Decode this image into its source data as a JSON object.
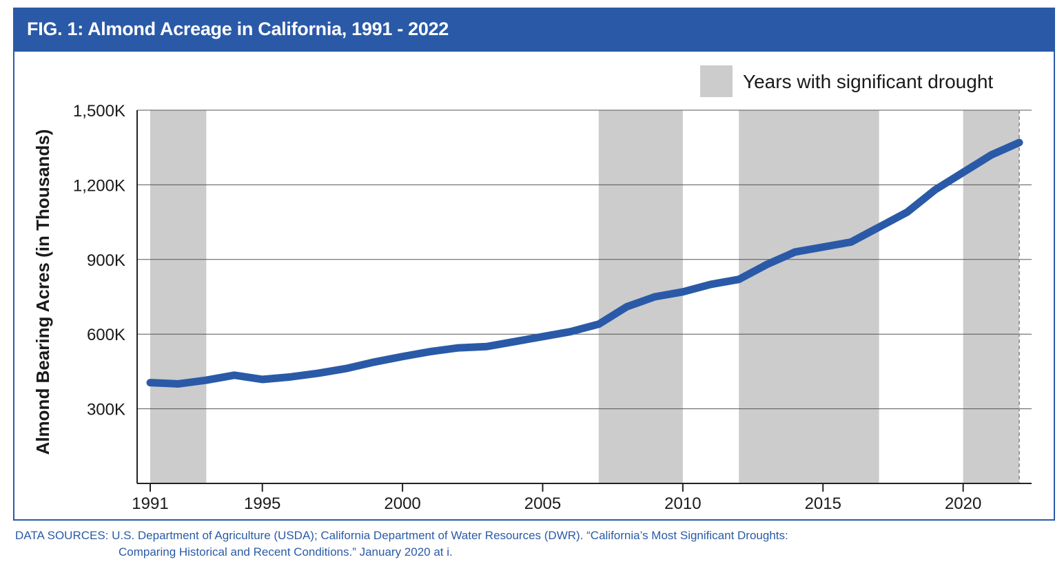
{
  "chart_data": {
    "type": "line",
    "title": "FIG. 1: Almond Acreage in California, 1991 - 2022",
    "ylabel": "Almond Bearing Acres (in Thousands)",
    "xlabel": "",
    "xlim": [
      1991,
      2022
    ],
    "ylim": [
      0,
      1500
    ],
    "x_ticks": [
      1991,
      1995,
      2000,
      2005,
      2010,
      2015,
      2020
    ],
    "x_tick_labels": [
      "1991",
      "1995",
      "2000",
      "2005",
      "2010",
      "2015",
      "2020"
    ],
    "y_ticks": [
      300,
      600,
      900,
      1200,
      1500
    ],
    "y_tick_labels": [
      "300K",
      "600K",
      "900K",
      "1,200K",
      "1,500K"
    ],
    "grid": "horizontal",
    "legend": {
      "position": "top-right",
      "label": "Years with significant drought"
    },
    "drought_periods": [
      [
        1991,
        1993
      ],
      [
        2007,
        2010
      ],
      [
        2012,
        2017
      ],
      [
        2020,
        2022
      ]
    ],
    "series": [
      {
        "name": "Almond Bearing Acres",
        "color": "#2a5aa7",
        "x": [
          1991,
          1992,
          1993,
          1994,
          1995,
          1996,
          1997,
          1998,
          1999,
          2000,
          2001,
          2002,
          2003,
          2004,
          2005,
          2006,
          2007,
          2008,
          2009,
          2010,
          2011,
          2012,
          2013,
          2014,
          2015,
          2016,
          2017,
          2018,
          2019,
          2020,
          2021,
          2022
        ],
        "values": [
          405,
          400,
          415,
          435,
          418,
          428,
          443,
          462,
          488,
          510,
          530,
          545,
          550,
          570,
          590,
          610,
          640,
          710,
          750,
          770,
          800,
          820,
          880,
          930,
          950,
          970,
          1030,
          1090,
          1180,
          1250,
          1320,
          1370
        ]
      }
    ]
  },
  "header": {
    "title": "FIG. 1: Almond Acreage in California, 1991 - 2022"
  },
  "source": {
    "line1": "DATA SOURCES: U.S. Department of Agriculture (USDA); California Department of Water Resources (DWR). “California’s Most Significant Droughts:",
    "line2": "Comparing Historical and Recent Conditions.” January 2020 at i."
  },
  "colors": {
    "accent": "#2a5aa7",
    "drought": "#cccccc",
    "grid": "#555555",
    "text": "#1a1a1a"
  }
}
